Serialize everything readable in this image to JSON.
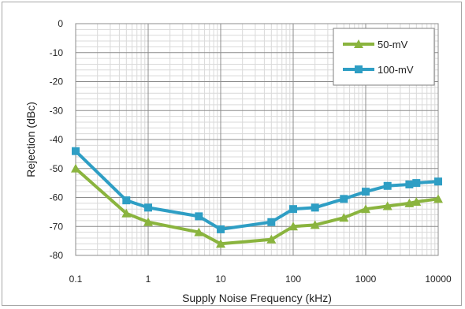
{
  "chart_data": {
    "type": "line",
    "title": "",
    "xlabel": "Supply Noise Frequency (kHz)",
    "ylabel": "Rejection (dBc)",
    "xscale": "log",
    "xlim": [
      0.1,
      10000
    ],
    "ylim": [
      -80,
      0
    ],
    "x_ticks": [
      0.1,
      1,
      10,
      100,
      1000,
      10000
    ],
    "x_tick_labels": [
      "0.1",
      "1",
      "10",
      "100",
      "1000",
      "10000"
    ],
    "y_ticks": [
      0,
      -10,
      -20,
      -30,
      -40,
      -50,
      -60,
      -70,
      -80
    ],
    "y_tick_labels": [
      "0",
      "-10",
      "-20",
      "-30",
      "-40",
      "-50",
      "-60",
      "-70",
      "-80"
    ],
    "grid": true,
    "legend_position": "top-right",
    "series": [
      {
        "name": "50-mV",
        "color": "#8ab43e",
        "marker": "triangle",
        "x": [
          0.1,
          0.5,
          1,
          5,
          10,
          50,
          100,
          200,
          500,
          1000,
          2000,
          4000,
          5000,
          10000
        ],
        "y": [
          -50,
          -65.5,
          -68.5,
          -72,
          -76,
          -74.5,
          -70,
          -69.5,
          -67,
          -64,
          -63,
          -62,
          -61.5,
          -60.5
        ]
      },
      {
        "name": "100-mV",
        "color": "#2e9ec4",
        "marker": "square",
        "x": [
          0.1,
          0.5,
          1,
          5,
          10,
          50,
          100,
          200,
          500,
          1000,
          2000,
          4000,
          5000,
          10000
        ],
        "y": [
          -44,
          -61,
          -63.5,
          -66.5,
          -71,
          -68.5,
          -64,
          -63.5,
          -60.5,
          -58,
          -56,
          -55.5,
          -55,
          -54.5
        ]
      }
    ]
  }
}
